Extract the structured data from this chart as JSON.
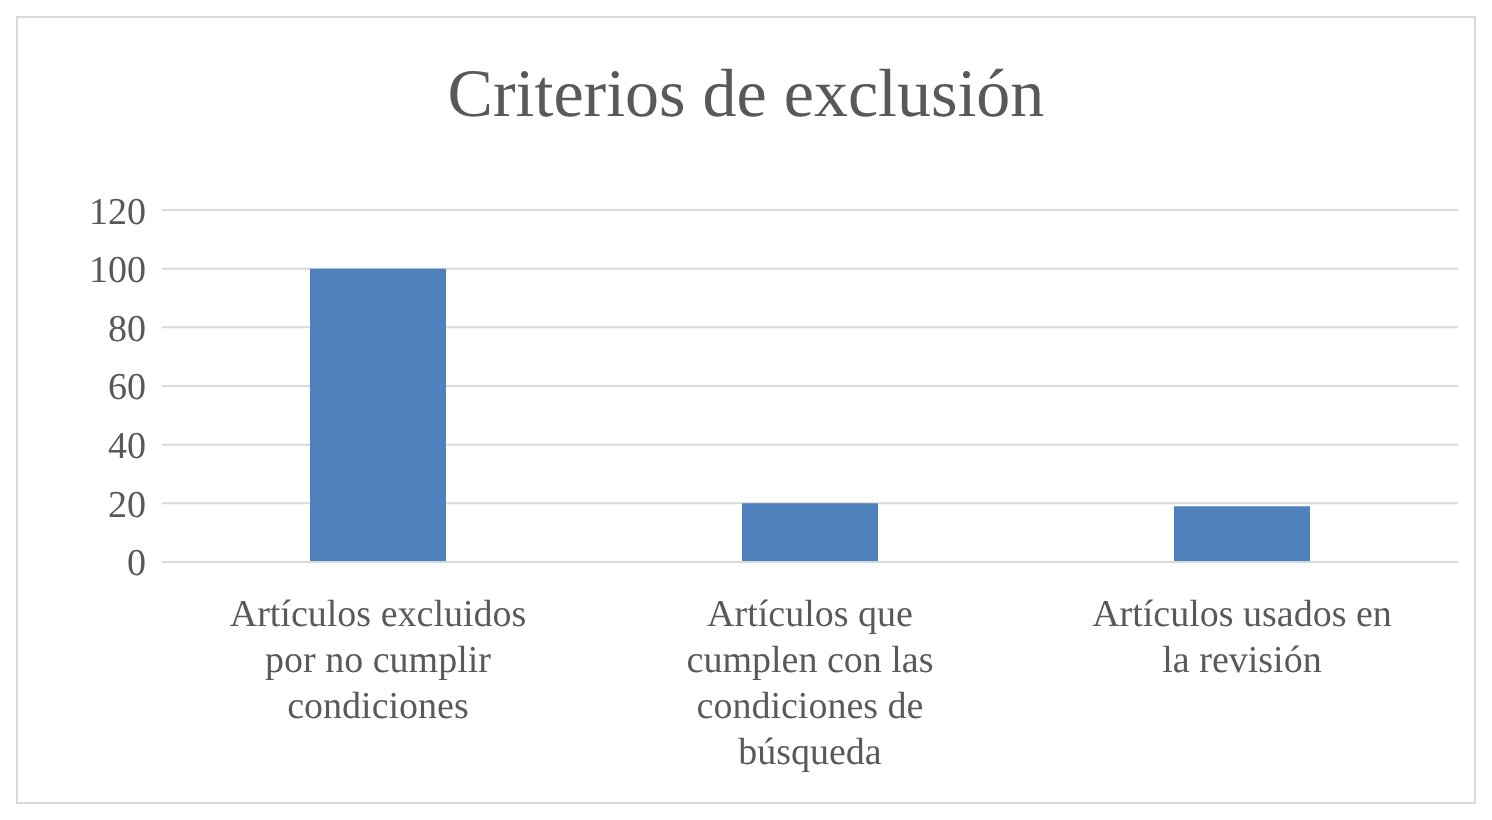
{
  "chart_data": {
    "type": "bar",
    "title": "Criterios de exclusión",
    "categories": [
      "Artículos excluidos por no cumplir condiciones",
      "Artículos que cumplen con las condiciones de búsqueda",
      "Artículos usados en la revisión"
    ],
    "values": [
      100,
      20,
      19
    ],
    "color": "#4f81bd",
    "ylim": [
      0,
      120
    ],
    "yticks": [
      0,
      20,
      40,
      60,
      80,
      100,
      120
    ],
    "grid": "y"
  }
}
